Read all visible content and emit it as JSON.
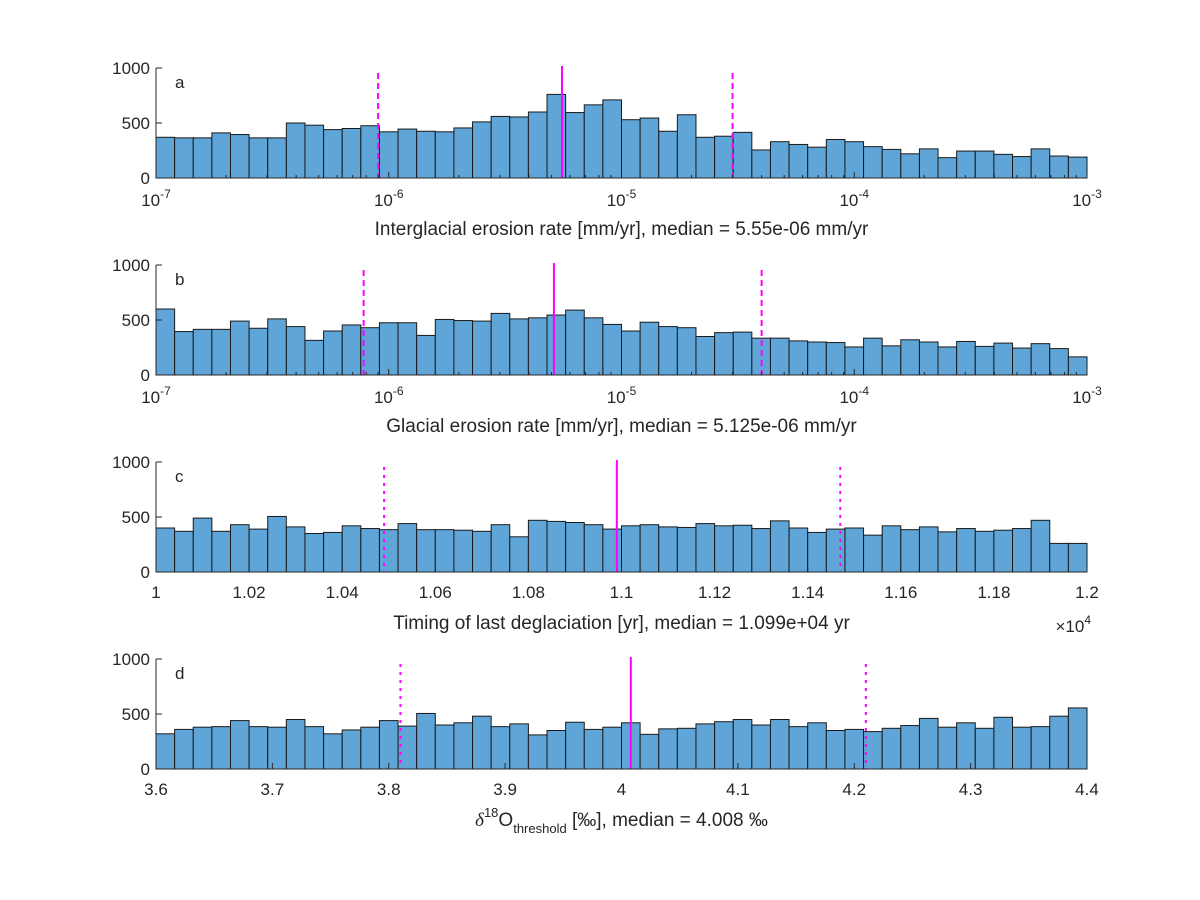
{
  "colors": {
    "bar_fill": "#5fa5d8",
    "bar_edge": "#1a1a1a",
    "median_line": "#ff00ff",
    "interval_line": "#ff00ff",
    "axis": "#262626"
  },
  "chart_data": [
    {
      "type": "bar",
      "panel": "a",
      "xscale": "log",
      "xlim": [
        1e-07,
        0.001
      ],
      "ylim": [
        0,
        1000
      ],
      "xticks": [
        {
          "value": 1e-07,
          "base": "10",
          "exp": "-7"
        },
        {
          "value": 1e-06,
          "base": "10",
          "exp": "-6"
        },
        {
          "value": 1e-05,
          "base": "10",
          "exp": "-5"
        },
        {
          "value": 0.0001,
          "base": "10",
          "exp": "-4"
        },
        {
          "value": 0.001,
          "base": "10",
          "exp": "-3"
        }
      ],
      "yticks": [
        "0",
        "500",
        "1000"
      ],
      "xlabel": "Interglacial erosion rate [mm/yr], median = 5.55e-06 mm/yr",
      "median": 5.55e-06,
      "interval": [
        9e-07,
        3e-05
      ],
      "values": [
        370,
        365,
        365,
        410,
        395,
        365,
        365,
        500,
        480,
        440,
        450,
        475,
        420,
        445,
        425,
        420,
        455,
        510,
        560,
        555,
        600,
        760,
        595,
        665,
        710,
        530,
        545,
        425,
        575,
        370,
        380,
        415,
        255,
        330,
        305,
        280,
        350,
        330,
        285,
        260,
        220,
        265,
        185,
        245,
        245,
        215,
        195,
        265,
        200,
        190
      ]
    },
    {
      "type": "bar",
      "panel": "b",
      "xscale": "log",
      "xlim": [
        1e-07,
        0.001
      ],
      "ylim": [
        0,
        1000
      ],
      "xticks": [
        {
          "value": 1e-07,
          "base": "10",
          "exp": "-7"
        },
        {
          "value": 1e-06,
          "base": "10",
          "exp": "-6"
        },
        {
          "value": 1e-05,
          "base": "10",
          "exp": "-5"
        },
        {
          "value": 0.0001,
          "base": "10",
          "exp": "-4"
        },
        {
          "value": 0.001,
          "base": "10",
          "exp": "-3"
        }
      ],
      "yticks": [
        "0",
        "500",
        "1000"
      ],
      "xlabel": "Glacial erosion rate [mm/yr], median = 5.125e-06 mm/yr",
      "median": 5.125e-06,
      "interval": [
        7.8e-07,
        4e-05
      ],
      "values": [
        600,
        395,
        415,
        415,
        490,
        425,
        510,
        440,
        315,
        400,
        455,
        430,
        475,
        475,
        360,
        505,
        495,
        490,
        560,
        510,
        520,
        545,
        590,
        520,
        460,
        400,
        480,
        440,
        430,
        350,
        385,
        390,
        335,
        335,
        310,
        300,
        295,
        255,
        335,
        265,
        320,
        300,
        255,
        305,
        260,
        290,
        245,
        285,
        240,
        165
      ]
    },
    {
      "type": "bar",
      "panel": "c",
      "xscale": "linear",
      "xlim": [
        1.0,
        1.2
      ],
      "ylim": [
        0,
        1000
      ],
      "xticks": [
        {
          "value": 1.0,
          "label": "1"
        },
        {
          "value": 1.02,
          "label": "1.02"
        },
        {
          "value": 1.04,
          "label": "1.04"
        },
        {
          "value": 1.06,
          "label": "1.06"
        },
        {
          "value": 1.08,
          "label": "1.08"
        },
        {
          "value": 1.1,
          "label": "1.1"
        },
        {
          "value": 1.12,
          "label": "1.12"
        },
        {
          "value": 1.14,
          "label": "1.14"
        },
        {
          "value": 1.16,
          "label": "1.16"
        },
        {
          "value": 1.18,
          "label": "1.18"
        },
        {
          "value": 1.2,
          "label": "1.2"
        }
      ],
      "yticks": [
        "0",
        "500",
        "1000"
      ],
      "xlabel": "Timing of last deglaciation [yr], median = 1.099e+04 yr",
      "multiplier": {
        "base": "×10",
        "exp": "4"
      },
      "median": 1.099,
      "interval": [
        1.049,
        1.147
      ],
      "values": [
        400,
        370,
        490,
        370,
        430,
        390,
        505,
        410,
        350,
        360,
        420,
        395,
        385,
        440,
        385,
        385,
        380,
        370,
        430,
        320,
        470,
        460,
        450,
        430,
        390,
        420,
        430,
        410,
        405,
        440,
        420,
        425,
        395,
        465,
        400,
        360,
        390,
        400,
        335,
        420,
        385,
        410,
        365,
        395,
        370,
        380,
        395,
        470,
        260,
        260
      ]
    },
    {
      "type": "bar",
      "panel": "d",
      "xscale": "linear",
      "xlim": [
        3.6,
        4.4
      ],
      "ylim": [
        0,
        1000
      ],
      "xticks": [
        {
          "value": 3.6,
          "label": "3.6"
        },
        {
          "value": 3.7,
          "label": "3.7"
        },
        {
          "value": 3.8,
          "label": "3.8"
        },
        {
          "value": 3.9,
          "label": "3.9"
        },
        {
          "value": 4.0,
          "label": "4"
        },
        {
          "value": 4.1,
          "label": "4.1"
        },
        {
          "value": 4.2,
          "label": "4.2"
        },
        {
          "value": 4.3,
          "label": "4.3"
        },
        {
          "value": 4.4,
          "label": "4.4"
        }
      ],
      "yticks": [
        "0",
        "500",
        "1000"
      ],
      "xlabel_parts": {
        "delta": "δ",
        "sup": "18",
        "main": "O",
        "sub": "threshold",
        "rest": " [‰], median = 4.008 ‰"
      },
      "median": 4.008,
      "interval": [
        3.81,
        4.21
      ],
      "values": [
        320,
        360,
        380,
        385,
        440,
        385,
        380,
        450,
        385,
        320,
        355,
        380,
        440,
        390,
        505,
        400,
        420,
        480,
        385,
        410,
        310,
        350,
        425,
        360,
        380,
        420,
        315,
        365,
        370,
        410,
        430,
        450,
        400,
        450,
        385,
        420,
        350,
        360,
        340,
        370,
        395,
        460,
        380,
        420,
        370,
        470,
        380,
        385,
        480,
        555
      ]
    }
  ]
}
